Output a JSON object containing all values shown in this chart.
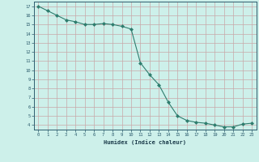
{
  "title": "",
  "xlabel": "Humidex (Indice chaleur)",
  "x_values": [
    0,
    1,
    2,
    3,
    4,
    5,
    6,
    7,
    8,
    9,
    10,
    11,
    12,
    13,
    14,
    15,
    16,
    17,
    18,
    19,
    20,
    21,
    22,
    23
  ],
  "y_values": [
    17,
    16.5,
    16,
    15.5,
    15.3,
    15.0,
    15.0,
    15.1,
    15.0,
    14.8,
    14.5,
    10.8,
    9.5,
    8.4,
    6.5,
    5.0,
    4.5,
    4.3,
    4.2,
    4.0,
    3.8,
    3.8,
    4.1,
    4.2
  ],
  "ylim": [
    3.5,
    17.5
  ],
  "xlim": [
    -0.5,
    23.5
  ],
  "yticks": [
    4,
    5,
    6,
    7,
    8,
    9,
    10,
    11,
    12,
    13,
    14,
    15,
    16,
    17
  ],
  "xticks": [
    0,
    1,
    2,
    3,
    4,
    5,
    6,
    7,
    8,
    9,
    10,
    11,
    12,
    13,
    14,
    15,
    16,
    17,
    18,
    19,
    20,
    21,
    22,
    23
  ],
  "line_color": "#2e7d6e",
  "marker_color": "#2e7d6e",
  "bg_color": "#cdf0ea",
  "grid_color": "#c8a8a8",
  "tick_label_color": "#2e5d6e",
  "xlabel_color": "#1a3a4a"
}
